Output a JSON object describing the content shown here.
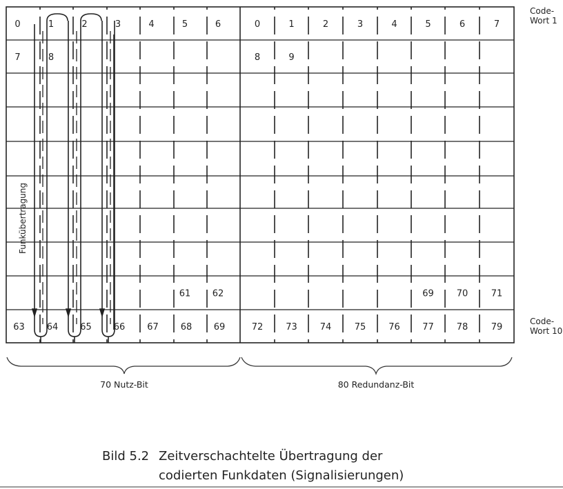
{
  "grid": {
    "left_header": [
      "0",
      "1",
      "2",
      "3",
      "4",
      "5",
      "6"
    ],
    "right_header": [
      "0",
      "1",
      "2",
      "3",
      "4",
      "5",
      "6",
      "7"
    ],
    "rows": [
      {
        "left": [
          "0",
          "1",
          "2",
          "3",
          "4",
          "5",
          "6"
        ],
        "right": [
          "0",
          "1",
          "2",
          "3",
          "4",
          "5",
          "6",
          "7"
        ]
      },
      {
        "left": [
          "7",
          "8",
          "",
          "",
          "",
          "",
          ""
        ],
        "right": [
          "8",
          "9",
          "",
          "",
          "",
          "",
          "",
          ""
        ]
      },
      {
        "left": [
          "",
          "",
          "",
          "",
          "",
          "",
          ""
        ],
        "right": [
          "",
          "",
          "",
          "",
          "",
          "",
          "",
          ""
        ]
      },
      {
        "left": [
          "",
          "",
          "",
          "",
          "",
          "",
          ""
        ],
        "right": [
          "",
          "",
          "",
          "",
          "",
          "",
          "",
          ""
        ]
      },
      {
        "left": [
          "",
          "",
          "",
          "",
          "",
          "",
          ""
        ],
        "right": [
          "",
          "",
          "",
          "",
          "",
          "",
          "",
          ""
        ]
      },
      {
        "left": [
          "",
          "",
          "",
          "",
          "",
          "",
          ""
        ],
        "right": [
          "",
          "",
          "",
          "",
          "",
          "",
          "",
          ""
        ]
      },
      {
        "left": [
          "",
          "",
          "",
          "",
          "",
          "",
          ""
        ],
        "right": [
          "",
          "",
          "",
          "",
          "",
          "",
          "",
          ""
        ]
      },
      {
        "left": [
          "",
          "",
          "",
          "",
          "",
          "",
          ""
        ],
        "right": [
          "",
          "",
          "",
          "",
          "",
          "",
          "",
          ""
        ]
      },
      {
        "left": [
          "",
          "",
          "",
          "",
          "",
          "61",
          "62"
        ],
        "right": [
          "",
          "",
          "",
          "",
          "",
          "69",
          "70",
          "71"
        ]
      },
      {
        "left": [
          "63",
          "64",
          "65",
          "66",
          "67",
          "68",
          "69"
        ],
        "right": [
          "72",
          "73",
          "74",
          "75",
          "76",
          "77",
          "78",
          "79"
        ]
      }
    ]
  },
  "labels": {
    "codeword_first_1": "Code-",
    "codeword_first_2": "Wort 1",
    "codeword_last_1": "Code-",
    "codeword_last_2": "Wort 10",
    "transmission": "Funkübertragung",
    "payload_bits": "70 Nutz-Bit",
    "redundancy_bits": "80 Redundanz-Bit"
  },
  "caption": {
    "number": "Bild 5.2",
    "line1": "Zeitverschachtelte Übertragung der",
    "line2": "codierten Funkdaten (Signalisierungen)"
  }
}
